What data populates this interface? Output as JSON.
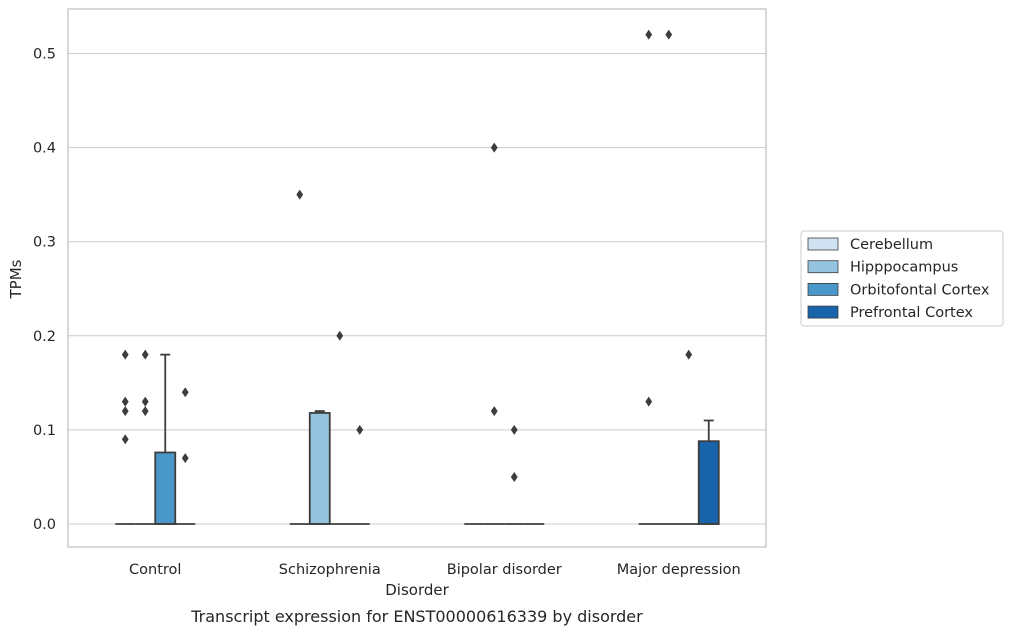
{
  "chart_data": {
    "type": "box",
    "title": "",
    "caption": "Transcript expression for ENST00000616339 by disorder",
    "xlabel": "Disorder",
    "ylabel": "TPMs",
    "ylim": [
      -0.026,
      0.548
    ],
    "yticks": [
      "0.0",
      "0.1",
      "0.2",
      "0.3",
      "0.4",
      "0.5"
    ],
    "grid": true,
    "legend_position": "right",
    "categories": [
      "Control",
      "Schizophrenia",
      "Bipolar disorder",
      "Major depression"
    ],
    "series": [
      {
        "name": "Cerebellum",
        "color": "#d0e1f2",
        "boxes": [
          {
            "q1": 0,
            "median": 0,
            "q3": 0,
            "whisker_low": 0,
            "whisker_high": 0,
            "outliers": [
              0.09,
              0.18,
              0.13,
              0.12
            ]
          },
          {
            "q1": 0,
            "median": 0,
            "q3": 0,
            "whisker_low": 0,
            "whisker_high": 0,
            "outliers": [
              0.35
            ]
          },
          {
            "q1": 0,
            "median": 0,
            "q3": 0,
            "whisker_low": 0,
            "whisker_high": 0,
            "outliers": []
          },
          {
            "q1": 0,
            "median": 0,
            "q3": 0,
            "whisker_low": 0,
            "whisker_high": 0,
            "outliers": [
              0.52,
              0.13
            ]
          }
        ]
      },
      {
        "name": "Hipppocampus",
        "color": "#94c4df",
        "boxes": [
          {
            "q1": 0,
            "median": 0,
            "q3": 0,
            "whisker_low": 0,
            "whisker_high": 0,
            "outliers": [
              0.18,
              0.13,
              0.12
            ]
          },
          {
            "q1": 0,
            "median": 0,
            "q3": 0.118,
            "whisker_low": 0,
            "whisker_high": 0.12,
            "outliers": []
          },
          {
            "q1": 0,
            "median": 0,
            "q3": 0,
            "whisker_low": 0,
            "whisker_high": 0,
            "outliers": [
              0.4,
              0.12
            ]
          },
          {
            "q1": 0,
            "median": 0,
            "q3": 0,
            "whisker_low": 0,
            "whisker_high": 0,
            "outliers": [
              0.52
            ]
          }
        ]
      },
      {
        "name": "Orbitofontal Cortex",
        "color": "#4a98c9",
        "boxes": [
          {
            "q1": 0,
            "median": 0,
            "q3": 0.076,
            "whisker_low": 0,
            "whisker_high": 0.18,
            "outliers": []
          },
          {
            "q1": 0,
            "median": 0,
            "q3": 0,
            "whisker_low": 0,
            "whisker_high": 0,
            "outliers": [
              0.2
            ]
          },
          {
            "q1": 0,
            "median": 0,
            "q3": 0,
            "whisker_low": 0,
            "whisker_high": 0,
            "outliers": [
              0.1,
              0.05
            ]
          },
          {
            "q1": 0,
            "median": 0,
            "q3": 0,
            "whisker_low": 0,
            "whisker_high": 0,
            "outliers": [
              0.18
            ]
          }
        ]
      },
      {
        "name": "Prefrontal Cortex",
        "color": "#1764ab",
        "boxes": [
          {
            "q1": 0,
            "median": 0,
            "q3": 0,
            "whisker_low": 0,
            "whisker_high": 0,
            "outliers": [
              0.14,
              0.07
            ]
          },
          {
            "q1": 0,
            "median": 0,
            "q3": 0,
            "whisker_low": 0,
            "whisker_high": 0,
            "outliers": [
              0.1
            ]
          },
          {
            "q1": 0,
            "median": 0,
            "q3": 0,
            "whisker_low": 0,
            "whisker_high": 0,
            "outliers": []
          },
          {
            "q1": 0,
            "median": 0,
            "q3": 0.088,
            "whisker_low": 0,
            "whisker_high": 0.11,
            "outliers": []
          }
        ]
      }
    ]
  }
}
